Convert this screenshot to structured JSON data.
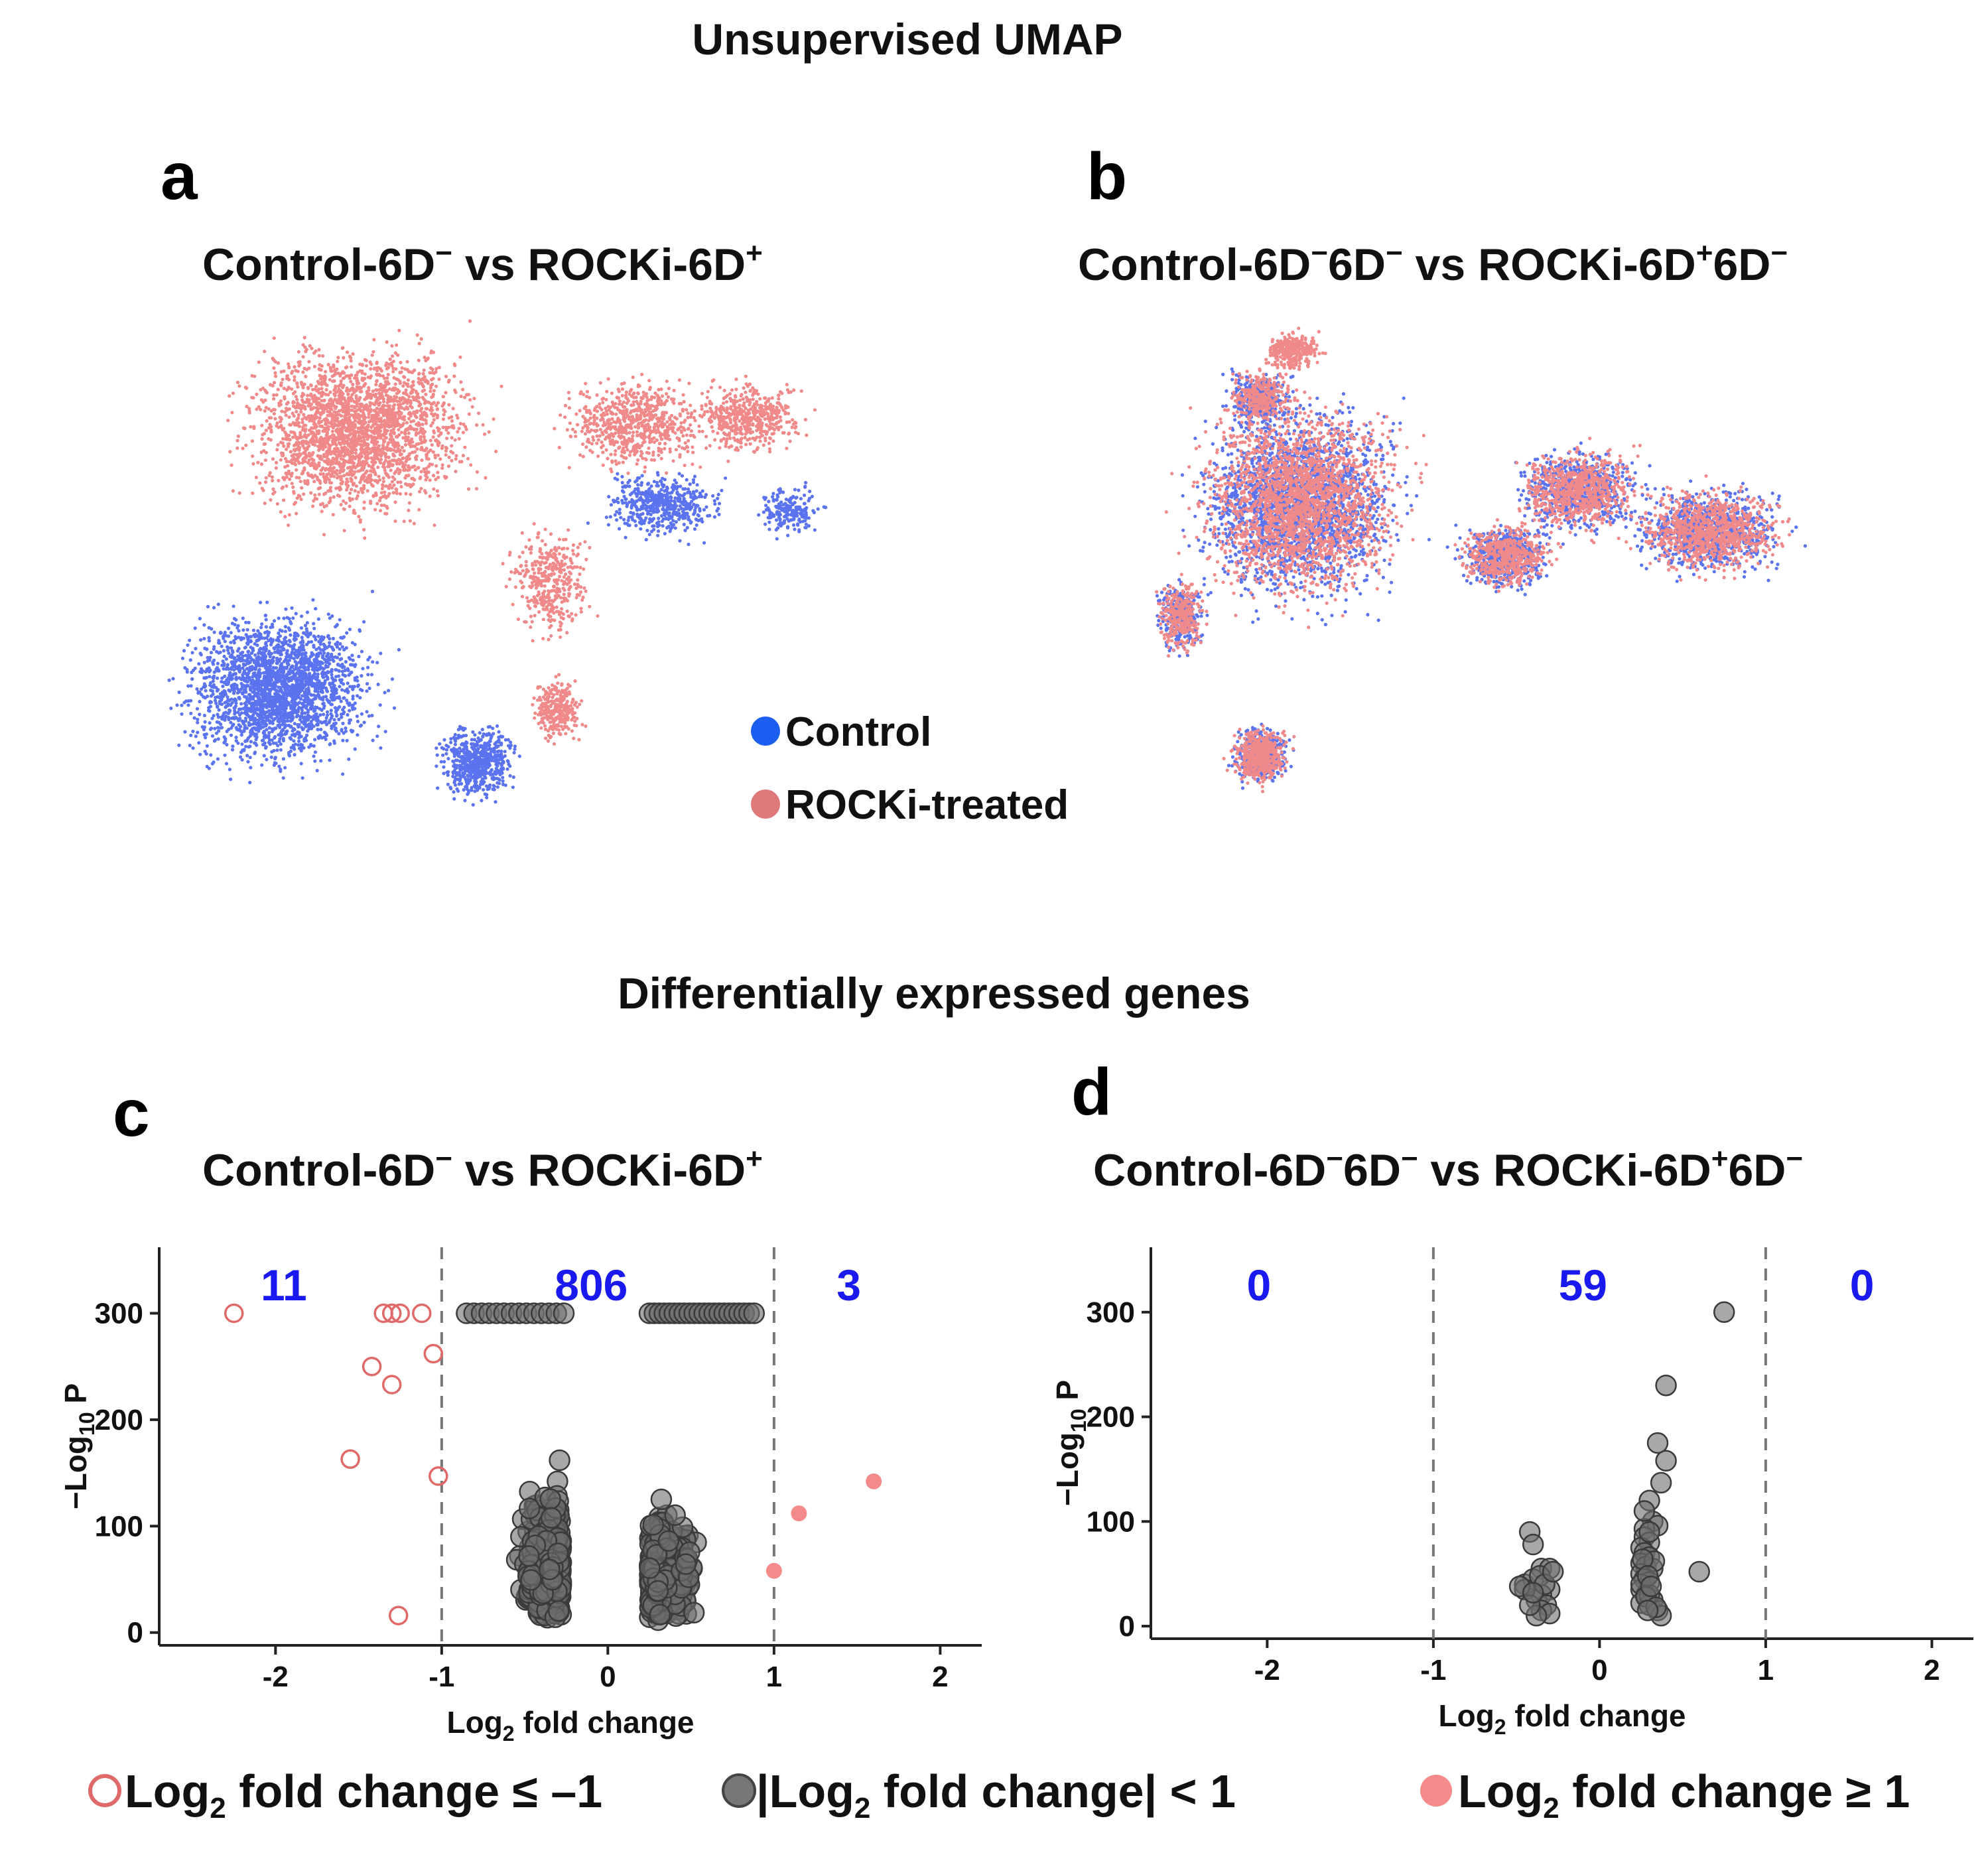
{
  "titles": {
    "umap": "Unsupervised UMAP",
    "deg": "Differentially expressed genes"
  },
  "colors": {
    "control": "#5b73ee",
    "control_legend": "#1b5ef0",
    "rocki": "#f08a8a",
    "rocki_legend": "#e07a7a",
    "open_marker": "#e06a6a",
    "up_marker": "#f48a8a",
    "ns_marker": "#555555",
    "count_label": "#1a1af0"
  },
  "panels": {
    "a": {
      "letter": "a",
      "title_parts": [
        "Control-6D",
        "−",
        " vs  ROCKi-6D",
        "+"
      ]
    },
    "b": {
      "letter": "b",
      "title_parts": [
        "Control-6D",
        "−",
        "6D",
        "−",
        " vs  ROCKi-6D",
        "+",
        "6D",
        "−"
      ]
    },
    "c": {
      "letter": "c",
      "title_parts": [
        "Control-6D",
        "−",
        " vs  ROCKi-6D",
        "+"
      ]
    },
    "d": {
      "letter": "d",
      "title_parts": [
        "Control-6D",
        "−",
        "6D",
        "−",
        " vs  ROCKi-6D",
        "+",
        "6D",
        "−"
      ]
    }
  },
  "umap_legend": [
    {
      "label": "Control",
      "color_key": "control_legend"
    },
    {
      "label": "ROCKi-treated",
      "color_key": "rocki_legend"
    }
  ],
  "bottom_legend": [
    {
      "sub_prefix": "Log",
      "sub": "2",
      "rest": " fold change ≤ –1",
      "marker": "open"
    },
    {
      "sub_prefix": "|Log",
      "sub": "2",
      "rest": " fold change| < 1",
      "marker": "ns"
    },
    {
      "sub_prefix": "Log",
      "sub": "2",
      "rest": " fold change ≥ 1",
      "marker": "up"
    }
  ],
  "axis_text": {
    "x_title_main": "Log",
    "x_title_sub": "2",
    "x_title_rest": " fold change",
    "y_title_prefix": "−Log",
    "y_title_sub": "10",
    "y_title_rest": " P"
  },
  "chart_data": [
    {
      "id": "c",
      "type": "scatter",
      "title": "Control-6D− vs ROCKi-6D+",
      "xlabel": "Log2 fold change",
      "ylabel": "−Log10 P",
      "xlim": [
        -2.7,
        2.25
      ],
      "ylim": [
        -12,
        362
      ],
      "xticks": [
        -2,
        -1,
        0,
        1,
        2
      ],
      "yticks": [
        0,
        100,
        200,
        300
      ],
      "thresholds": [
        -1,
        1
      ],
      "counts": [
        {
          "label": "11",
          "x": -1.95
        },
        {
          "label": "806",
          "x": -0.1
        },
        {
          "label": "3",
          "x": 1.45
        }
      ],
      "series": [
        {
          "name": "Log2 fold change ≤ –1",
          "marker": "open",
          "points": [
            [
              -2.25,
              300
            ],
            [
              -1.35,
              300
            ],
            [
              -1.3,
              300
            ],
            [
              -1.25,
              300
            ],
            [
              -1.12,
              300
            ],
            [
              -1.42,
              250
            ],
            [
              -1.05,
              262
            ],
            [
              -1.3,
              233
            ],
            [
              -1.55,
              163
            ],
            [
              -1.02,
              147
            ],
            [
              -1.26,
              16
            ]
          ]
        },
        {
          "name": "Log2 fold change ≥ 1",
          "marker": "up",
          "points": [
            [
              1.6,
              142
            ],
            [
              1.15,
              112
            ],
            [
              1.0,
              58
            ]
          ]
        },
        {
          "name": "|Log2 fold change| < 1",
          "marker": "ns",
          "generated": true,
          "summary": "806 genes; two clusters at log2FC ≈ -0.85..-0.25 and 0.25..0.9, many saturated at 300"
        }
      ]
    },
    {
      "id": "d",
      "type": "scatter",
      "title": "Control-6D−6D− vs ROCKi-6D+6D−",
      "xlabel": "Log2 fold change",
      "ylabel": "−Log10 P",
      "xlim": [
        -2.7,
        2.25
      ],
      "ylim": [
        -12,
        362
      ],
      "xticks": [
        -2,
        -1,
        0,
        1,
        2
      ],
      "yticks": [
        0,
        100,
        200,
        300
      ],
      "thresholds": [
        -1,
        1
      ],
      "counts": [
        {
          "label": "0",
          "x": -2.05
        },
        {
          "label": "59",
          "x": -0.1
        },
        {
          "label": "0",
          "x": 1.58
        }
      ],
      "series": [
        {
          "name": "|Log2 fold change| < 1",
          "marker": "ns",
          "points": [
            [
              0.75,
              300
            ],
            [
              0.4,
              230
            ],
            [
              0.35,
              175
            ],
            [
              0.4,
              158
            ],
            [
              0.3,
              120
            ],
            [
              0.37,
              137
            ],
            [
              0.32,
              100
            ],
            [
              0.35,
              96
            ],
            [
              0.27,
              93
            ],
            [
              0.27,
              85
            ],
            [
              0.3,
              80
            ],
            [
              0.25,
              75
            ],
            [
              0.27,
              70
            ],
            [
              0.3,
              66
            ],
            [
              0.25,
              60
            ],
            [
              0.28,
              57
            ],
            [
              0.32,
              55
            ],
            [
              0.25,
              50
            ],
            [
              0.27,
              45
            ],
            [
              0.3,
              42
            ],
            [
              0.25,
              35
            ],
            [
              0.28,
              30
            ],
            [
              0.32,
              25
            ],
            [
              0.25,
              22
            ],
            [
              0.3,
              20
            ],
            [
              0.35,
              15
            ],
            [
              0.37,
              10
            ],
            [
              0.6,
              52
            ],
            [
              -0.42,
              90
            ],
            [
              -0.4,
              78
            ],
            [
              -0.35,
              55
            ],
            [
              -0.3,
              55
            ],
            [
              -0.45,
              40
            ],
            [
              -0.4,
              45
            ],
            [
              -0.3,
              35
            ],
            [
              -0.35,
              30
            ],
            [
              -0.38,
              25
            ],
            [
              -0.32,
              20
            ],
            [
              -0.35,
              15
            ],
            [
              -0.3,
              12
            ],
            [
              -0.38,
              10
            ],
            [
              -0.45,
              35
            ],
            [
              -0.48,
              38
            ],
            [
              -0.42,
              20
            ],
            [
              0.27,
              110
            ],
            [
              0.3,
              90
            ],
            [
              0.25,
              40
            ],
            [
              0.3,
              30
            ],
            [
              0.28,
              28
            ],
            [
              0.33,
              62
            ],
            [
              0.26,
              64
            ],
            [
              0.29,
              48
            ],
            [
              0.31,
              38
            ],
            [
              -0.36,
              48
            ],
            [
              -0.33,
              40
            ],
            [
              -0.28,
              52
            ],
            [
              -0.4,
              32
            ],
            [
              0.34,
              18
            ],
            [
              0.29,
              15
            ]
          ]
        }
      ]
    }
  ]
}
